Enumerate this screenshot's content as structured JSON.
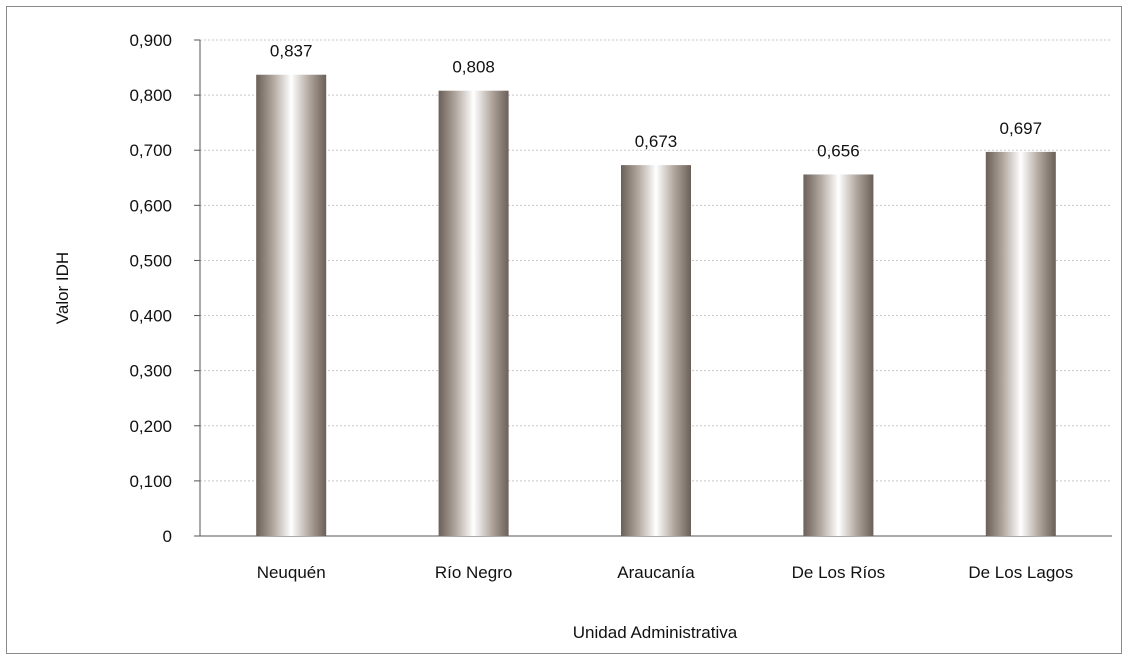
{
  "chart_data": {
    "type": "bar",
    "categories": [
      "Neuquén",
      "Río Negro",
      "Araucanía",
      "De Los Ríos",
      "De Los Lagos"
    ],
    "values": [
      0.837,
      0.808,
      0.673,
      0.656,
      0.697
    ],
    "data_labels": [
      "0,837",
      "0,808",
      "0,673",
      "0,656",
      "0,697"
    ],
    "ylim": [
      0,
      0.9
    ],
    "yticks": [
      0,
      0.1,
      0.2,
      0.3,
      0.4,
      0.5,
      0.6,
      0.7,
      0.8,
      0.9
    ],
    "ytick_labels": [
      "0",
      "0,100",
      "0,200",
      "0,300",
      "0,400",
      "0,500",
      "0,600",
      "0,700",
      "0,800",
      "0,900"
    ],
    "xlabel": "Unidad Administrativa",
    "ylabel": "Valor IDH",
    "grid": "horizontal dotted",
    "bar_colors": {
      "edge": "#6b5f57",
      "highlight": "#ffffff"
    }
  }
}
